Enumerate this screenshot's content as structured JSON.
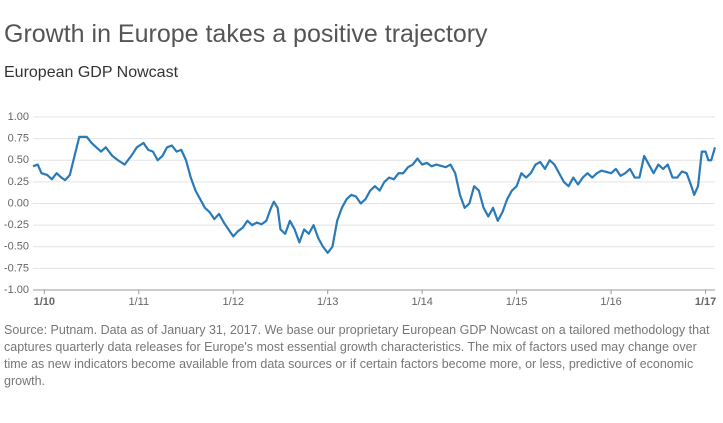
{
  "chart_data": {
    "type": "line",
    "title": "Growth in Europe takes a positive trajectory",
    "subtitle": "European GDP Nowcast",
    "source": "Source: Putnam. Data as of January 31, 2017. We base our proprietary European GDP Nowcast on a tailored methodology that captures quarterly data releases for Europe's most essential growth characteristics. The mix of factors used may change over time as new indicators become available from data sources or if certain factors become more, or less, predictive of economic growth.",
    "x": [
      2009.88,
      2009.93,
      2009.97,
      2010.03,
      2010.08,
      2010.13,
      2010.18,
      2010.22,
      2010.27,
      2010.32,
      2010.37,
      2010.45,
      2010.5,
      2010.55,
      2010.6,
      2010.65,
      2010.72,
      2010.78,
      2010.85,
      2010.92,
      2010.98,
      2011.05,
      2011.1,
      2011.15,
      2011.2,
      2011.25,
      2011.3,
      2011.35,
      2011.4,
      2011.45,
      2011.5,
      2011.55,
      2011.6,
      2011.65,
      2011.7,
      2011.75,
      2011.8,
      2011.85,
      2011.9,
      2011.95,
      2012.0,
      2012.05,
      2012.1,
      2012.15,
      2012.2,
      2012.25,
      2012.3,
      2012.35,
      2012.4,
      2012.43,
      2012.47,
      2012.5,
      2012.55,
      2012.6,
      2012.65,
      2012.7,
      2012.75,
      2012.8,
      2012.85,
      2012.9,
      2012.95,
      2013.0,
      2013.05,
      2013.1,
      2013.15,
      2013.2,
      2013.25,
      2013.3,
      2013.35,
      2013.4,
      2013.45,
      2013.5,
      2013.55,
      2013.6,
      2013.65,
      2013.7,
      2013.75,
      2013.8,
      2013.85,
      2013.9,
      2013.95,
      2014.0,
      2014.05,
      2014.1,
      2014.15,
      2014.25,
      2014.3,
      2014.35,
      2014.4,
      2014.45,
      2014.5,
      2014.55,
      2014.6,
      2014.65,
      2014.7,
      2014.75,
      2014.8,
      2014.85,
      2014.9,
      2014.95,
      2015.0,
      2015.05,
      2015.1,
      2015.15,
      2015.2,
      2015.25,
      2015.3,
      2015.35,
      2015.4,
      2015.45,
      2015.5,
      2015.55,
      2015.6,
      2015.65,
      2015.7,
      2015.75,
      2015.8,
      2015.85,
      2015.9,
      2016.0,
      2016.05,
      2016.1,
      2016.15,
      2016.2,
      2016.25,
      2016.3,
      2016.35,
      2016.4,
      2016.45,
      2016.5,
      2016.55,
      2016.6,
      2016.65,
      2016.7,
      2016.75,
      2016.8,
      2016.85,
      2016.88,
      2016.92,
      2016.96,
      2017.0,
      2017.03,
      2017.06,
      2017.1
    ],
    "series": [
      {
        "name": "European GDP Nowcast",
        "color": "#2a7ab8",
        "values": [
          0.43,
          0.45,
          0.35,
          0.33,
          0.28,
          0.35,
          0.3,
          0.27,
          0.33,
          0.55,
          0.77,
          0.77,
          0.7,
          0.65,
          0.6,
          0.65,
          0.55,
          0.5,
          0.45,
          0.55,
          0.65,
          0.7,
          0.62,
          0.6,
          0.5,
          0.55,
          0.65,
          0.67,
          0.6,
          0.62,
          0.5,
          0.3,
          0.15,
          0.05,
          -0.05,
          -0.1,
          -0.18,
          -0.12,
          -0.22,
          -0.3,
          -0.38,
          -0.32,
          -0.28,
          -0.2,
          -0.25,
          -0.22,
          -0.24,
          -0.2,
          -0.05,
          0.02,
          -0.05,
          -0.3,
          -0.35,
          -0.2,
          -0.3,
          -0.45,
          -0.3,
          -0.35,
          -0.25,
          -0.4,
          -0.5,
          -0.57,
          -0.5,
          -0.2,
          -0.05,
          0.05,
          0.1,
          0.08,
          0.0,
          0.05,
          0.15,
          0.2,
          0.15,
          0.25,
          0.3,
          0.28,
          0.35,
          0.35,
          0.42,
          0.45,
          0.52,
          0.45,
          0.47,
          0.43,
          0.45,
          0.42,
          0.45,
          0.35,
          0.1,
          -0.05,
          0.0,
          0.2,
          0.15,
          -0.05,
          -0.15,
          -0.05,
          -0.2,
          -0.1,
          0.05,
          0.15,
          0.2,
          0.35,
          0.3,
          0.35,
          0.45,
          0.48,
          0.4,
          0.5,
          0.45,
          0.35,
          0.25,
          0.2,
          0.3,
          0.22,
          0.3,
          0.35,
          0.3,
          0.35,
          0.38,
          0.35,
          0.4,
          0.32,
          0.35,
          0.4,
          0.3,
          0.3,
          0.55,
          0.45,
          0.35,
          0.45,
          0.4,
          0.45,
          0.3,
          0.3,
          0.37,
          0.35,
          0.2,
          0.1,
          0.2,
          0.6,
          0.6,
          0.5,
          0.5,
          0.65
        ]
      }
    ],
    "xlim": [
      2009.88,
      2017.1
    ],
    "xticks": [
      {
        "value": 2010,
        "label": "1/10"
      },
      {
        "value": 2011,
        "label": "1/11"
      },
      {
        "value": 2012,
        "label": "1/12"
      },
      {
        "value": 2013,
        "label": "1/13"
      },
      {
        "value": 2014,
        "label": "1/14"
      },
      {
        "value": 2015,
        "label": "1/15"
      },
      {
        "value": 2016,
        "label": "1/16"
      },
      {
        "value": 2017,
        "label": "1/17"
      }
    ],
    "ylim": [
      -1,
      1
    ],
    "yticks": [
      {
        "value": -1,
        "label": "-1.00"
      },
      {
        "value": -0.75,
        "label": "-0.75"
      },
      {
        "value": -0.5,
        "label": "-0.50"
      },
      {
        "value": -0.25,
        "label": "-0.25"
      },
      {
        "value": 0,
        "label": "0.00"
      },
      {
        "value": 0.25,
        "label": "0.25"
      },
      {
        "value": 0.5,
        "label": "0.50"
      },
      {
        "value": 0.75,
        "label": "0.75"
      },
      {
        "value": 1,
        "label": "1.00"
      }
    ],
    "grid": true
  }
}
